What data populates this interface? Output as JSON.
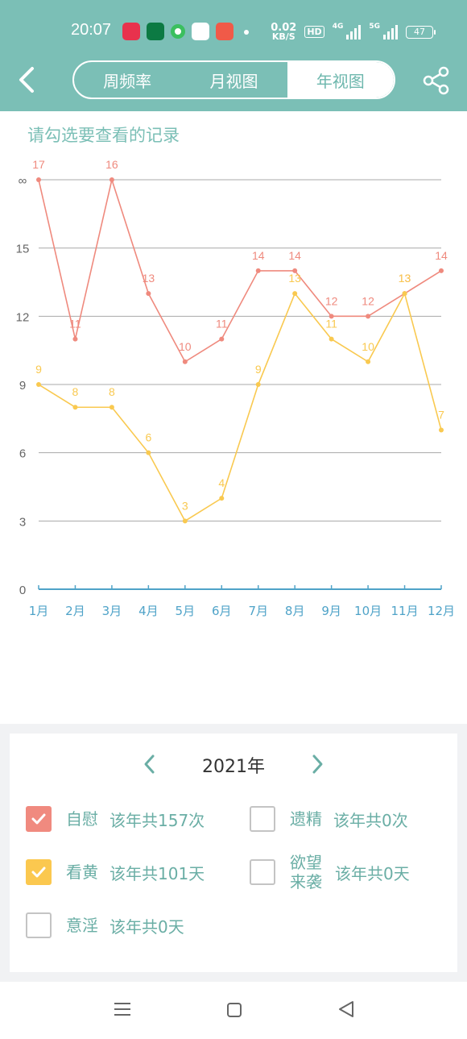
{
  "status_bar": {
    "time": "20:07",
    "speed_value": "0.02",
    "speed_unit": "KB/S",
    "hd": "HD",
    "net1": "4G",
    "net2": "5G",
    "battery": "47"
  },
  "header": {
    "back_icon": "chevron-left-icon",
    "tabs": [
      {
        "label": "周频率",
        "active": false
      },
      {
        "label": "月视图",
        "active": false
      },
      {
        "label": "年视图",
        "active": true
      }
    ],
    "share_icon": "share-icon"
  },
  "hint": "请勾选要查看的记录",
  "chart_data": {
    "type": "line",
    "categories": [
      "1月",
      "2月",
      "3月",
      "4月",
      "5月",
      "6月",
      "7月",
      "8月",
      "9月",
      "10月",
      "11月",
      "12月"
    ],
    "y_ticks": [
      "0",
      "3",
      "6",
      "9",
      "12",
      "15",
      "∞"
    ],
    "ylim": [
      0,
      18
    ],
    "grid": true,
    "series": [
      {
        "color": "#ef8a7e",
        "values": [
          17,
          11,
          16,
          13,
          10,
          11,
          14,
          14,
          12,
          12,
          13,
          14
        ],
        "plotted": [
          18,
          11,
          18,
          13,
          10,
          11,
          14,
          14,
          12,
          12,
          13,
          14
        ]
      },
      {
        "color": "#f9c950",
        "values": [
          9,
          8,
          8,
          6,
          3,
          4,
          9,
          13,
          11,
          10,
          13,
          7
        ]
      }
    ]
  },
  "year_panel": {
    "year": "2021年",
    "prev_icon": "chevron-left-icon",
    "next_icon": "chevron-right-icon"
  },
  "options": [
    {
      "name": "自慰",
      "stat": "该年共157次",
      "checked": true,
      "color": "#f08a7f"
    },
    {
      "name": "遗精",
      "stat": "该年共0次",
      "checked": false
    },
    {
      "name": "看黄",
      "stat": "该年共101天",
      "checked": true,
      "color": "#fbc84f"
    },
    {
      "name": "欲望来袭",
      "stat": "该年共0天",
      "checked": false
    },
    {
      "name": "意淫",
      "stat": "该年共0天",
      "checked": false
    }
  ],
  "nav": {
    "menu_icon": "menu-icon",
    "home_icon": "home-square-icon",
    "back_icon": "back-triangle-icon"
  }
}
